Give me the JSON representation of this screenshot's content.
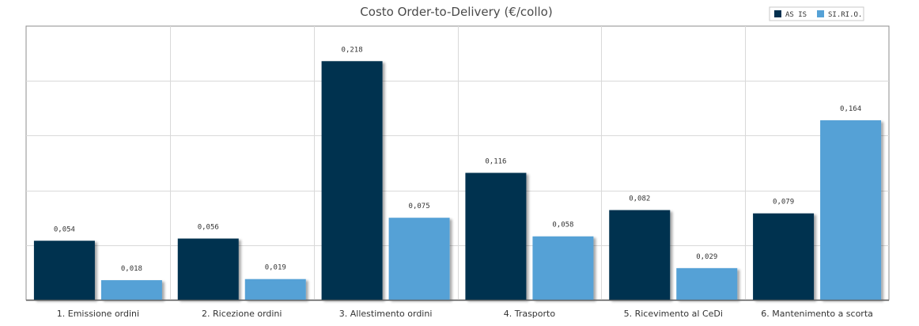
{
  "chart_data": {
    "type": "bar",
    "title": "Costo Order-to-Delivery (€/collo)",
    "categories": [
      "1. Emissione ordini",
      "2. Ricezione ordini",
      "3. Allestimento ordini",
      "4. Trasporto",
      "5. Ricevimento al CeDi",
      "6. Mantenimento a scorta"
    ],
    "series": [
      {
        "name": "AS IS",
        "color": "#01304f",
        "values": [
          0.054,
          0.056,
          0.218,
          0.116,
          0.082,
          0.079
        ],
        "labels": [
          "0,054",
          "0,056",
          "0,218",
          "0,116",
          "0,082",
          "0,079"
        ]
      },
      {
        "name": "SI.RI.O.",
        "color": "#55a1d6",
        "values": [
          0.018,
          0.019,
          0.075,
          0.058,
          0.029,
          0.164
        ],
        "labels": [
          "0,018",
          "0,019",
          "0,075",
          "0,058",
          "0,029",
          "0,164"
        ]
      }
    ],
    "xlabel": "",
    "ylabel": "",
    "ylim": [
      0,
      0.25
    ],
    "grid": true,
    "legend_position": "top-right"
  }
}
